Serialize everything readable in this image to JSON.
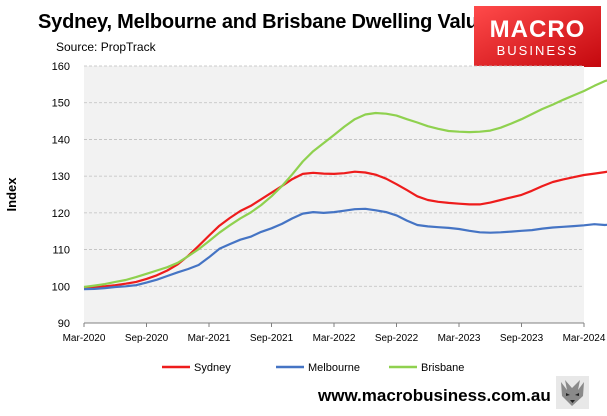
{
  "header": {
    "title": "Sydney, Melbourne and Brisbane Dwelling Values",
    "source": "Source: PropTrack"
  },
  "logo": {
    "line1": "MACRO",
    "line2": "BUSINESS",
    "color": "#d9161c"
  },
  "footer": {
    "url": "www.macrobusiness.com.au"
  },
  "colors": {
    "plot_bg": "#f2f2f2",
    "sydney": "#ee1c1c",
    "melbourne": "#4574c4",
    "brisbane": "#8fd14f"
  },
  "chart_data": {
    "type": "line",
    "title": "Sydney, Melbourne and Brisbane Dwelling Values",
    "xlabel": "",
    "ylabel": "Index",
    "ylim": [
      90,
      160
    ],
    "yticks": [
      90,
      100,
      110,
      120,
      130,
      140,
      150,
      160
    ],
    "xlim": [
      "2020-03",
      "2024-03"
    ],
    "xticks": [
      "Mar-2020",
      "Sep-2020",
      "Mar-2021",
      "Sep-2021",
      "Mar-2022",
      "Sep-2022",
      "Mar-2023",
      "Sep-2023",
      "Mar-2024"
    ],
    "legend_position": "bottom",
    "start_month": "2020-03",
    "series": [
      {
        "name": "Sydney",
        "color": "#ee1c1c",
        "values": [
          99.5,
          99.7,
          100.0,
          100.3,
          100.7,
          101.2,
          102.0,
          103.0,
          104.3,
          106.0,
          108.3,
          111.0,
          113.8,
          116.5,
          118.6,
          120.5,
          121.9,
          123.7,
          125.5,
          127.3,
          129.2,
          130.6,
          130.9,
          130.7,
          130.6,
          130.8,
          131.2,
          131.0,
          130.4,
          129.3,
          127.8,
          126.2,
          124.5,
          123.5,
          123.0,
          122.7,
          122.5,
          122.3,
          122.3,
          122.8,
          123.5,
          124.2,
          124.9,
          126.0,
          127.3,
          128.4,
          129.1,
          129.7,
          130.3,
          130.7,
          131.1,
          131.5,
          131.5,
          131.3,
          131.2,
          131.2
        ]
      },
      {
        "name": "Melbourne",
        "color": "#4574c4",
        "values": [
          99.2,
          99.3,
          99.5,
          99.8,
          100.0,
          100.3,
          101.0,
          101.8,
          102.8,
          103.8,
          104.7,
          105.8,
          107.9,
          110.2,
          111.5,
          112.7,
          113.5,
          114.8,
          115.8,
          117.0,
          118.5,
          119.8,
          120.2,
          120.0,
          120.2,
          120.6,
          121.0,
          121.1,
          120.7,
          120.2,
          119.3,
          117.9,
          116.7,
          116.3,
          116.1,
          115.9,
          115.6,
          115.1,
          114.7,
          114.6,
          114.7,
          114.9,
          115.1,
          115.3,
          115.7,
          116.0,
          116.2,
          116.4,
          116.6,
          116.9,
          116.7,
          116.9,
          116.5,
          116.0,
          115.4,
          115.4
        ]
      },
      {
        "name": "Brisbane",
        "color": "#8fd14f",
        "values": [
          99.8,
          100.2,
          100.6,
          101.2,
          101.7,
          102.5,
          103.4,
          104.3,
          105.2,
          106.4,
          108.2,
          110.1,
          112.3,
          114.6,
          116.6,
          118.5,
          120.1,
          122.1,
          124.5,
          127.3,
          130.5,
          134.0,
          136.8,
          139.0,
          141.2,
          143.5,
          145.5,
          146.8,
          147.2,
          147.0,
          146.5,
          145.5,
          144.6,
          143.6,
          142.9,
          142.3,
          142.1,
          142.0,
          142.1,
          142.4,
          143.2,
          144.3,
          145.5,
          146.9,
          148.3,
          149.5,
          150.8,
          152.0,
          153.2,
          154.6,
          155.9,
          156.7,
          157.1,
          157.4,
          157.6,
          157.6
        ]
      }
    ]
  }
}
